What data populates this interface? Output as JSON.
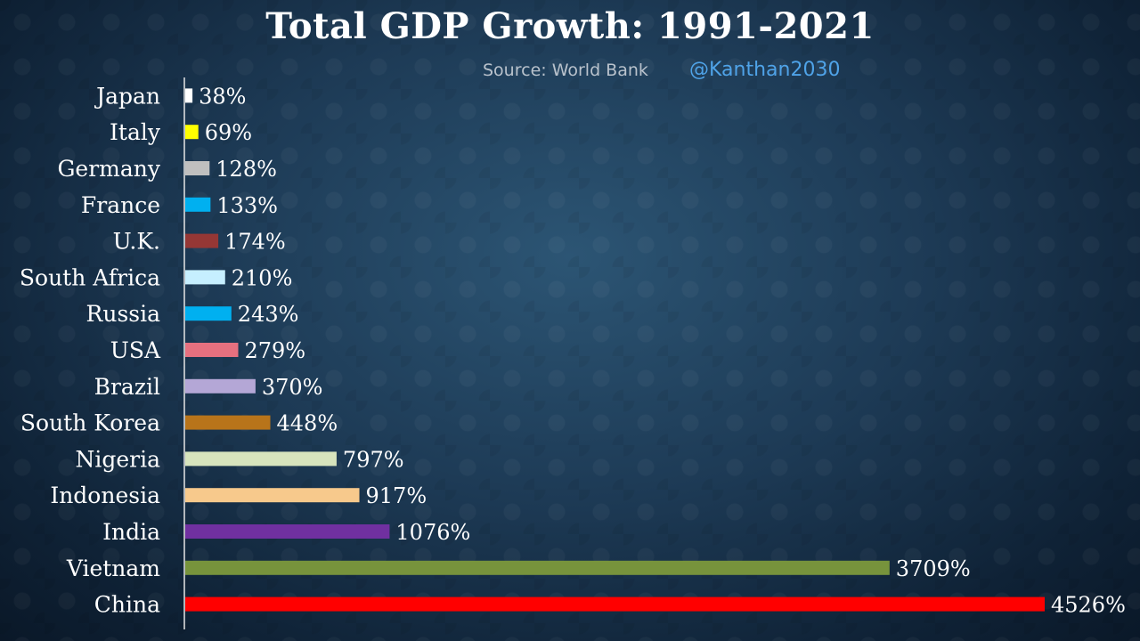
{
  "title": "Total GDP Growth: 1991-2021",
  "source": "Source: World Bank",
  "handle": "@Kanthan2030",
  "colors": {
    "title": "#ffffff",
    "source": "#b9c2cc",
    "handle": "#4fa3e8",
    "labels": "#ffffff"
  },
  "chart_data": {
    "type": "bar",
    "orientation": "horizontal",
    "value_suffix": "%",
    "categories": [
      "Japan",
      "Italy",
      "Germany",
      "France",
      "U.K.",
      "South Africa",
      "Russia",
      "USA",
      "Brazil",
      "South Korea",
      "Nigeria",
      "Indonesia",
      "India",
      "Vietnam",
      "China"
    ],
    "values": [
      38,
      69,
      128,
      133,
      174,
      210,
      243,
      279,
      370,
      448,
      797,
      917,
      1076,
      3709,
      4526
    ],
    "value_labels": [
      "38%",
      "69%",
      "128%",
      "133%",
      "174%",
      "210%",
      "243%",
      "279%",
      "370%",
      "448%",
      "797%",
      "917%",
      "1076%",
      "3709%",
      "4526%"
    ],
    "bar_colors": [
      "#ffffff",
      "#ffff00",
      "#bfbfbf",
      "#00b0f0",
      "#953735",
      "#c6efff",
      "#00b0f0",
      "#e6707f",
      "#b4a7d6",
      "#b8741a",
      "#d7e4bd",
      "#f7c98c",
      "#7030a0",
      "#77933c",
      "#ff0000"
    ],
    "xlim": [
      0,
      4526
    ],
    "grid": false,
    "legend": "none"
  }
}
